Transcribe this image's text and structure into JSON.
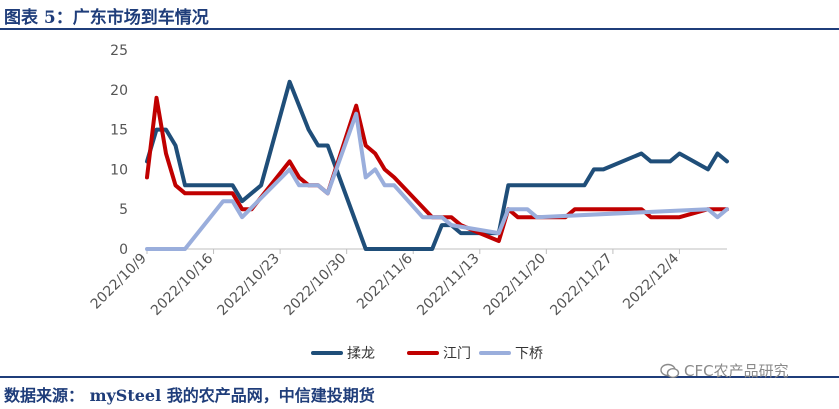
{
  "figure": {
    "title": "图表 5：广东市场到车情况",
    "source": "数据来源： mySteel 我的农产品网，中信建投期货",
    "watermark": "CFC农产品研究"
  },
  "chart_data": {
    "type": "line",
    "title": "",
    "xlabel": "",
    "ylabel": "",
    "ylim": [
      0,
      25
    ],
    "yticks": [
      0,
      5,
      10,
      15,
      20,
      25
    ],
    "xlim": [
      "2022-10-09",
      "2022-12-09"
    ],
    "xticks": [
      "2022/10/9",
      "2022/10/16",
      "2022/10/23",
      "2022/10/30",
      "2022/11/6",
      "2022/11/13",
      "2022/11/20",
      "2022/11/27",
      "2022/12/4"
    ],
    "grid": false,
    "legend_position": "bottom",
    "series": [
      {
        "name": "揉龙",
        "color": "#1f4e79",
        "points": [
          [
            "2022-10-09",
            11
          ],
          [
            "2022-10-10",
            15
          ],
          [
            "2022-10-11",
            15
          ],
          [
            "2022-10-12",
            13
          ],
          [
            "2022-10-13",
            8
          ],
          [
            "2022-10-18",
            8
          ],
          [
            "2022-10-19",
            6
          ],
          [
            "2022-10-21",
            8
          ],
          [
            "2022-10-24",
            21
          ],
          [
            "2022-10-26",
            15
          ],
          [
            "2022-10-27",
            13
          ],
          [
            "2022-10-28",
            13
          ],
          [
            "2022-11-01",
            0
          ],
          [
            "2022-11-08",
            0
          ],
          [
            "2022-11-09",
            3
          ],
          [
            "2022-11-10",
            3
          ],
          [
            "2022-11-11",
            2
          ],
          [
            "2022-11-13",
            2
          ],
          [
            "2022-11-15",
            2
          ],
          [
            "2022-11-16",
            8
          ],
          [
            "2022-11-24",
            8
          ],
          [
            "2022-11-25",
            10
          ],
          [
            "2022-11-26",
            10
          ],
          [
            "2022-11-30",
            12
          ],
          [
            "2022-12-01",
            11
          ],
          [
            "2022-12-03",
            11
          ],
          [
            "2022-12-04",
            12
          ],
          [
            "2022-12-07",
            10
          ],
          [
            "2022-12-08",
            12
          ],
          [
            "2022-12-09",
            11
          ]
        ]
      },
      {
        "name": "江门",
        "color": "#c00000",
        "points": [
          [
            "2022-10-09",
            9
          ],
          [
            "2022-10-10",
            19
          ],
          [
            "2022-10-11",
            12
          ],
          [
            "2022-10-12",
            8
          ],
          [
            "2022-10-13",
            7
          ],
          [
            "2022-10-18",
            7
          ],
          [
            "2022-10-19",
            5
          ],
          [
            "2022-10-20",
            5
          ],
          [
            "2022-10-24",
            11
          ],
          [
            "2022-10-25",
            9
          ],
          [
            "2022-10-26",
            8
          ],
          [
            "2022-10-27",
            8
          ],
          [
            "2022-10-28",
            7
          ],
          [
            "2022-10-31",
            18
          ],
          [
            "2022-11-01",
            13
          ],
          [
            "2022-11-02",
            12
          ],
          [
            "2022-11-03",
            10
          ],
          [
            "2022-11-04",
            9
          ],
          [
            "2022-11-08",
            4
          ],
          [
            "2022-11-10",
            4
          ],
          [
            "2022-11-11",
            3
          ],
          [
            "2022-11-13",
            2
          ],
          [
            "2022-11-15",
            1
          ],
          [
            "2022-11-16",
            5
          ],
          [
            "2022-11-17",
            4
          ],
          [
            "2022-11-22",
            4
          ],
          [
            "2022-11-23",
            5
          ],
          [
            "2022-11-30",
            5
          ],
          [
            "2022-12-01",
            4
          ],
          [
            "2022-12-04",
            4
          ],
          [
            "2022-12-07",
            5
          ],
          [
            "2022-12-09",
            5
          ]
        ]
      },
      {
        "name": "下桥",
        "color": "#9aaedc",
        "points": [
          [
            "2022-10-09",
            0
          ],
          [
            "2022-10-13",
            0
          ],
          [
            "2022-10-17",
            6
          ],
          [
            "2022-10-18",
            6
          ],
          [
            "2022-10-19",
            4
          ],
          [
            "2022-10-24",
            10
          ],
          [
            "2022-10-25",
            8
          ],
          [
            "2022-10-27",
            8
          ],
          [
            "2022-10-28",
            7
          ],
          [
            "2022-10-31",
            17
          ],
          [
            "2022-11-01",
            9
          ],
          [
            "2022-11-02",
            10
          ],
          [
            "2022-11-03",
            8
          ],
          [
            "2022-11-04",
            8
          ],
          [
            "2022-11-07",
            4
          ],
          [
            "2022-11-09",
            4
          ],
          [
            "2022-11-10",
            3
          ],
          [
            "2022-11-15",
            2
          ],
          [
            "2022-11-16",
            5
          ],
          [
            "2022-11-18",
            5
          ],
          [
            "2022-11-19",
            4
          ],
          [
            "2022-12-07",
            5
          ],
          [
            "2022-12-08",
            4
          ],
          [
            "2022-12-09",
            5
          ]
        ]
      }
    ]
  }
}
